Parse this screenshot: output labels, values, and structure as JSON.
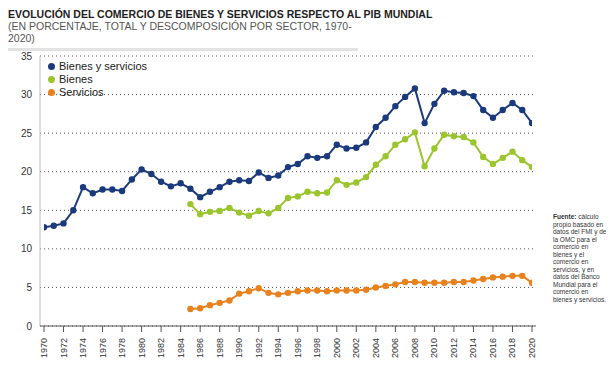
{
  "chart_data": {
    "type": "line",
    "title": "EVOLUCIÓN DEL COMERCIO DE BIENES Y SERVICIOS RESPECTO AL PIB MUNDIAL",
    "subtitle": "(EN PORCENTAJE, TOTAL Y DESCOMPOSICIÓN POR SECTOR, 1970-2020)",
    "source_label": "Fuente:",
    "source": "cálculo propio basado en datos del FMI y de la OMC para el comercio en bienes y el comercio en servicios, y en datos del Banco Mundial para el comercio en bienes y servicios.",
    "x": [
      1970,
      1971,
      1972,
      1973,
      1974,
      1975,
      1976,
      1977,
      1978,
      1979,
      1980,
      1981,
      1982,
      1983,
      1984,
      1985,
      1986,
      1987,
      1988,
      1989,
      1990,
      1991,
      1992,
      1993,
      1994,
      1995,
      1996,
      1997,
      1998,
      1999,
      2000,
      2001,
      2002,
      2003,
      2004,
      2005,
      2006,
      2007,
      2008,
      2009,
      2010,
      2011,
      2012,
      2013,
      2014,
      2015,
      2016,
      2017,
      2018,
      2019,
      2020
    ],
    "series": [
      {
        "name": "Bienes y servicios",
        "color": "#1b3a7c",
        "marker": "circle",
        "values": [
          12.8,
          13.0,
          13.3,
          15.0,
          18.0,
          17.2,
          17.7,
          17.7,
          17.5,
          19.0,
          20.3,
          19.7,
          18.7,
          18.1,
          18.5,
          17.8,
          16.7,
          17.4,
          18.0,
          18.7,
          18.9,
          18.8,
          19.9,
          19.2,
          19.5,
          20.6,
          21.0,
          22.0,
          21.8,
          22.0,
          23.5,
          23.0,
          23.1,
          23.8,
          25.8,
          27.0,
          28.5,
          29.7,
          30.8,
          26.3,
          28.8,
          30.5,
          30.3,
          30.2,
          29.8,
          28.0,
          27.0,
          28.0,
          28.9,
          28.0,
          26.3
        ]
      },
      {
        "name": "Bienes",
        "color": "#9bc52e",
        "marker": "circle",
        "values": [
          null,
          null,
          null,
          null,
          null,
          null,
          null,
          null,
          null,
          null,
          null,
          null,
          null,
          null,
          null,
          15.8,
          14.5,
          14.8,
          14.9,
          15.3,
          14.7,
          14.3,
          14.9,
          14.6,
          15.3,
          16.6,
          16.8,
          17.4,
          17.2,
          17.3,
          18.9,
          18.3,
          18.6,
          19.3,
          20.9,
          22.0,
          23.5,
          24.2,
          25.1,
          20.7,
          23.0,
          24.8,
          24.6,
          24.5,
          23.8,
          21.9,
          21.0,
          21.8,
          22.6,
          21.5,
          20.6
        ]
      },
      {
        "name": "Servicios",
        "color": "#e8821e",
        "marker": "circle",
        "values": [
          null,
          null,
          null,
          null,
          null,
          null,
          null,
          null,
          null,
          null,
          null,
          null,
          null,
          null,
          null,
          2.2,
          2.3,
          2.7,
          3.0,
          3.3,
          4.2,
          4.5,
          4.9,
          4.3,
          4.1,
          4.3,
          4.5,
          4.6,
          4.6,
          4.5,
          4.6,
          4.6,
          4.6,
          4.7,
          5.0,
          5.2,
          5.4,
          5.7,
          5.7,
          5.6,
          5.6,
          5.6,
          5.7,
          5.7,
          5.9,
          6.1,
          6.3,
          6.4,
          6.5,
          6.5,
          5.6
        ]
      }
    ],
    "xlim": [
      1970,
      2020
    ],
    "xticks": [
      1970,
      1972,
      1974,
      1976,
      1978,
      1980,
      1982,
      1984,
      1986,
      1988,
      1990,
      1992,
      1994,
      1996,
      1998,
      2000,
      2002,
      2004,
      2006,
      2008,
      2010,
      2012,
      2014,
      2016,
      2018,
      2020
    ],
    "ylim": [
      0,
      35
    ],
    "yticks": [
      0,
      5,
      10,
      15,
      20,
      25,
      30,
      35
    ],
    "grid": true,
    "legend": "top-left"
  }
}
